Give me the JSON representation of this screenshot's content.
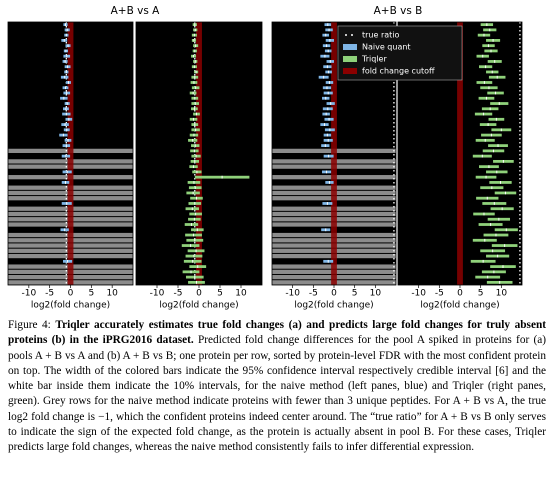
{
  "chart_data": [
    {
      "type": "interval",
      "title": "A+B vs A",
      "xlabel": "log2(fold change)",
      "xlim": [
        -15,
        15
      ],
      "xticks": [
        -10,
        -5,
        0,
        5,
        10
      ],
      "color": "#7fb6e6",
      "true_ratio": -1,
      "cutoff": [
        -0.7,
        0.7
      ],
      "values": [
        -1.2,
        -0.8,
        -1.0,
        -1.5,
        -0.6,
        -1.1,
        -0.9,
        -1.3,
        -0.7,
        -1.0,
        -1.4,
        -0.5,
        -1.2,
        -0.9,
        -1.6,
        -0.8,
        -1.1,
        -1.0,
        -0.4,
        -1.3,
        -0.9,
        -1.7,
        -0.6,
        -1.0,
        null,
        -1.1,
        null,
        null,
        -0.8,
        null,
        -1.2,
        null,
        null,
        null,
        -0.9,
        null,
        null,
        null,
        null,
        -1.4,
        null,
        null,
        null,
        null,
        null,
        -0.7,
        null,
        null,
        null,
        null
      ],
      "errors": [
        0.5,
        0.6,
        0.5,
        0.7,
        0.6,
        0.5,
        0.8,
        0.6,
        0.7,
        0.5,
        0.9,
        0.6,
        0.7,
        0.8,
        0.9,
        0.6,
        0.7,
        1.0,
        0.8,
        0.9,
        0.7,
        1.0,
        0.8,
        0.9,
        null,
        1.0,
        null,
        null,
        1.1,
        null,
        0.9,
        null,
        null,
        null,
        1.2,
        null,
        null,
        null,
        null,
        1.0,
        null,
        null,
        null,
        null,
        null,
        1.1,
        null,
        null,
        null,
        null
      ]
    },
    {
      "type": "interval",
      "xlabel": "log2(fold change)",
      "xlim": [
        -15,
        15
      ],
      "xticks": [
        -10,
        -5,
        0,
        5,
        10
      ],
      "color": "#8fd17a",
      "true_ratio": -1,
      "cutoff": [
        -0.7,
        0.7
      ],
      "values": [
        -1.0,
        -0.9,
        -1.1,
        -1.2,
        -0.8,
        -1.0,
        -1.3,
        -0.9,
        -1.1,
        -0.7,
        -1.0,
        -1.2,
        -0.8,
        -1.4,
        -1.0,
        -0.9,
        -1.1,
        -0.6,
        -1.3,
        -1.0,
        -0.8,
        -1.2,
        -1.5,
        -0.9,
        -1.1,
        -0.7,
        -1.0,
        -1.3,
        -0.5,
        5.5,
        -1.2,
        -0.9,
        -1.4,
        -0.6,
        -1.0,
        -1.6,
        -0.8,
        -1.1,
        -1.8,
        -0.4,
        -1.3,
        -1.0,
        -2.0,
        -0.7,
        -1.2,
        -1.5,
        -0.3,
        -1.9,
        -1.0,
        -0.6
      ],
      "errors": [
        0.5,
        0.5,
        0.6,
        0.5,
        0.6,
        0.5,
        0.6,
        0.5,
        0.6,
        0.5,
        0.8,
        0.8,
        0.9,
        0.8,
        0.8,
        0.9,
        0.8,
        0.8,
        0.9,
        0.8,
        1.0,
        1.0,
        1.1,
        1.0,
        1.0,
        1.1,
        1.0,
        1.0,
        1.1,
        6.5,
        1.5,
        1.5,
        1.6,
        1.5,
        1.5,
        1.6,
        1.5,
        1.5,
        1.6,
        1.5,
        2.0,
        2.0,
        2.1,
        2.0,
        2.0,
        2.1,
        2.0,
        2.0,
        2.1,
        2.0
      ]
    },
    {
      "type": "interval",
      "title": "A+B vs B",
      "xlabel": "log2(fold change)",
      "xlim": [
        -15,
        15
      ],
      "xticks": [
        -10,
        -5,
        0,
        5,
        10
      ],
      "color": "#7fb6e6",
      "true_ratio": 14.5,
      "cutoff": [
        -0.7,
        0.7
      ],
      "values": [
        -1.5,
        -1.2,
        -2.0,
        -1.0,
        -1.8,
        -1.4,
        -2.2,
        -0.9,
        -1.6,
        -1.3,
        -2.5,
        -1.1,
        -1.7,
        -1.4,
        -2.0,
        -0.8,
        -1.5,
        -1.9,
        -1.2,
        -2.3,
        -1.0,
        -1.6,
        -1.4,
        -2.1,
        null,
        -1.3,
        null,
        null,
        -1.8,
        null,
        -1.1,
        null,
        null,
        null,
        -1.6,
        null,
        null,
        null,
        null,
        -2.0,
        null,
        null,
        null,
        null,
        null,
        -1.4,
        null,
        null,
        null,
        null
      ],
      "errors": [
        0.8,
        0.9,
        0.8,
        1.0,
        0.9,
        0.8,
        1.1,
        0.9,
        1.0,
        0.8,
        1.2,
        0.9,
        1.0,
        1.1,
        0.9,
        1.0,
        1.2,
        0.9,
        1.1,
        1.0,
        1.2,
        0.9,
        1.1,
        1.0,
        null,
        1.2,
        null,
        null,
        1.1,
        null,
        1.0,
        null,
        null,
        null,
        1.2,
        null,
        null,
        null,
        null,
        1.1,
        null,
        null,
        null,
        null,
        null,
        1.2,
        null,
        null,
        null,
        null
      ]
    },
    {
      "type": "interval",
      "xlabel": "log2(fold change)",
      "xlim": [
        -15,
        15
      ],
      "xticks": [
        -10,
        -5,
        0,
        5,
        10
      ],
      "color": "#8fd17a",
      "true_ratio": 14.5,
      "cutoff": [
        -0.7,
        0.7
      ],
      "values": [
        6.5,
        7.2,
        5.8,
        8.0,
        6.9,
        7.5,
        5.5,
        8.4,
        6.2,
        7.8,
        9.0,
        5.9,
        7.0,
        8.6,
        6.4,
        9.5,
        7.3,
        5.7,
        8.8,
        6.8,
        10.0,
        7.6,
        6.1,
        9.2,
        8.1,
        5.4,
        10.5,
        7.0,
        8.9,
        6.3,
        9.8,
        7.7,
        11.0,
        6.6,
        8.3,
        10.2,
        5.8,
        9.4,
        7.4,
        11.2,
        8.7,
        6.0,
        10.8,
        7.9,
        9.1,
        5.6,
        10.4,
        8.2,
        6.7,
        9.6
      ],
      "errors": [
        1.5,
        1.6,
        1.5,
        1.7,
        1.5,
        1.6,
        1.5,
        1.7,
        1.6,
        1.5,
        2.0,
        1.9,
        2.1,
        2.0,
        1.9,
        2.2,
        2.0,
        2.1,
        1.9,
        2.0,
        2.4,
        2.5,
        2.3,
        2.4,
        2.6,
        2.3,
        2.5,
        2.4,
        2.6,
        2.5,
        2.7,
        2.8,
        2.6,
        2.7,
        2.9,
        2.8,
        2.6,
        2.7,
        2.9,
        2.8,
        3.0,
        2.9,
        3.1,
        3.0,
        2.8,
        3.0,
        3.1,
        2.9,
        3.0,
        3.1
      ],
      "legend": [
        {
          "name": "true ratio",
          "color": "#ffffff"
        },
        {
          "name": "Naive quant",
          "color": "#7fb6e6"
        },
        {
          "name": "Triqler",
          "color": "#8fd17a"
        },
        {
          "name": "fold change cutoff",
          "color": "#8b0000"
        }
      ]
    }
  ],
  "caption": {
    "label": "Figure 4:",
    "bold": "Triqler accurately estimates true fold changes (a) and predicts large fold changes for truly absent proteins (b) in the iPRG2016 dataset.",
    "text": "Predicted fold change differences for the pool A spiked in proteins for (a) pools A + B vs A and (b) A + B vs B; one protein per row, sorted by protein-level FDR with the most confident protein on top. The width of the colored bars indicate the 95% confidence interval respectively credible interval [6] and the white bar inside them indicate the 10% intervals, for the naive method (left panes, blue) and Triqler (right panes, green). Grey rows for the naive method indicate proteins with fewer than 3 unique peptides. For A + B vs A, the true log2 fold change is −1, which the confident proteins indeed center around. The “true ratio” for A + B vs B only serves to indicate the sign of the expected fold change, as the protein is actually absent in pool B. For these cases, Triqler predicts large fold changes, whereas the naive method consistently fails to infer differential expression."
  }
}
